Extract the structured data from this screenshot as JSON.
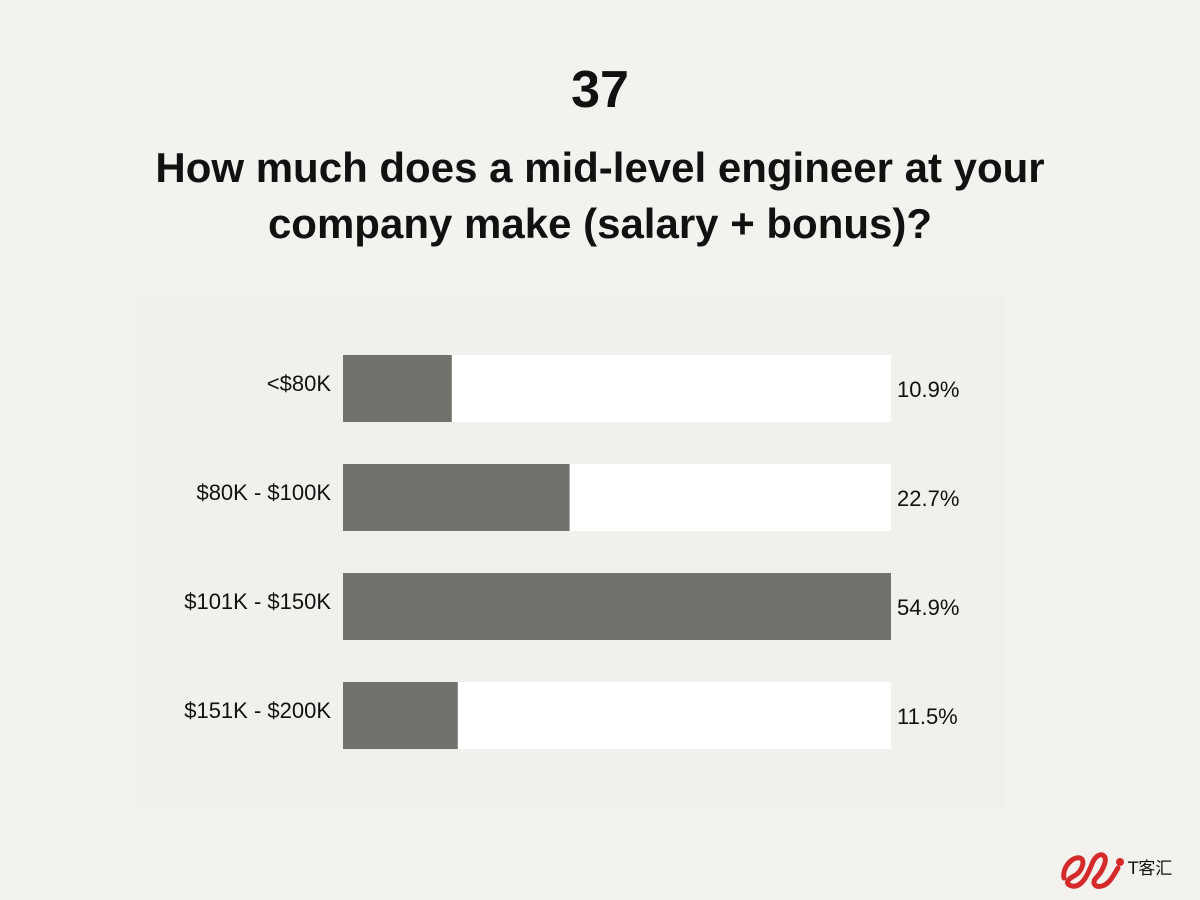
{
  "header": {
    "slide_number": "37",
    "question": "How much does a mid-level engineer at your company make (salary + bonus)?"
  },
  "colors": {
    "background": "#f3f2ee",
    "bar_fill": "#72716c",
    "bar_track": "#ffffff",
    "watermark": "#d42a2a"
  },
  "watermark": {
    "text": "T客汇"
  },
  "chart_data": {
    "type": "bar",
    "orientation": "horizontal",
    "categories": [
      "<$80K",
      "$80K - $100K",
      "$101K - $150K",
      "$151K - $200K"
    ],
    "values": [
      10.9,
      22.7,
      54.9,
      11.5
    ],
    "value_labels": [
      "10.9%",
      "22.7%",
      "54.9%",
      "11.5%"
    ],
    "xlim": [
      0,
      54.9
    ],
    "grid": false,
    "legend": "none"
  }
}
